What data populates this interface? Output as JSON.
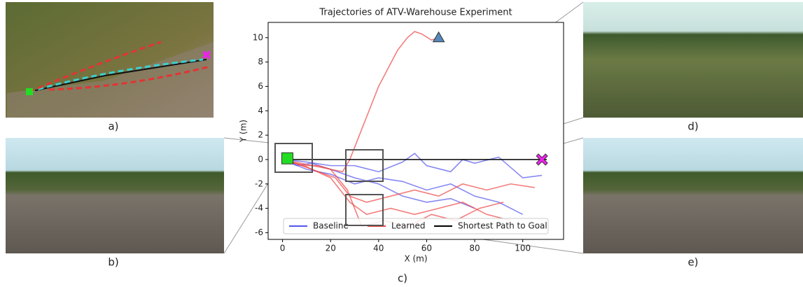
{
  "captions": [
    "a)",
    "b)",
    "c)",
    "d)",
    "e)"
  ],
  "chart_data": {
    "type": "line",
    "title": "Trajectories of ATV-Warehouse Experiment",
    "xlabel": "X (m)",
    "ylabel": "Y (m)",
    "xlim": [
      -6,
      117
    ],
    "ylim": [
      -6.55,
      11.25
    ],
    "xticks": [
      0,
      20,
      40,
      60,
      80,
      100
    ],
    "yticks": [
      -6,
      -4,
      -2,
      0,
      2,
      4,
      6,
      8,
      10
    ],
    "legend": "lower center",
    "series": [
      {
        "name": "Baseline",
        "color": "#5555ee",
        "lines": [
          {
            "x": [
              0,
              10,
              20,
              30,
              40,
              50,
              55,
              60,
              70,
              75,
              80,
              90,
              100,
              108
            ],
            "y": [
              0,
              -0.2,
              -0.5,
              -0.5,
              -1,
              -0.2,
              0.5,
              -0.5,
              -1,
              0,
              -0.3,
              0.2,
              -1.5,
              -1.3
            ]
          },
          {
            "x": [
              0,
              10,
              20,
              30,
              40,
              50,
              60,
              70,
              80,
              90,
              100
            ],
            "y": [
              0,
              -0.8,
              -1.2,
              -2,
              -1.5,
              -1.8,
              -2.5,
              -2,
              -3,
              -3.5,
              -4.5
            ]
          },
          {
            "x": [
              0,
              6,
              12,
              20,
              30,
              40,
              50,
              60,
              70,
              80
            ],
            "y": [
              0,
              -0.5,
              -0.3,
              -0.8,
              -1.5,
              -2,
              -3,
              -3.5,
              -3.2,
              -4
            ]
          }
        ]
      },
      {
        "name": "Learned",
        "color": "#ee4444",
        "lines": [
          {
            "x": [
              0,
              5,
              10,
              15,
              20,
              25,
              28,
              32,
              36,
              40,
              44,
              48,
              52,
              55,
              58,
              62,
              65
            ],
            "y": [
              0,
              -0.3,
              -0.5,
              -0.5,
              -0.8,
              -1,
              0,
              2,
              4,
              6,
              7.5,
              9,
              10,
              10.5,
              10.3,
              9.8,
              10
            ]
          },
          {
            "x": [
              0,
              8,
              15,
              22,
              28,
              35,
              45,
              55,
              65,
              75,
              85,
              95,
              105
            ],
            "y": [
              0,
              -0.5,
              -1,
              -1.5,
              -3,
              -3.5,
              -3,
              -2.5,
              -3,
              -2,
              -2.5,
              -2,
              -2.3
            ]
          },
          {
            "x": [
              0,
              10,
              20,
              28,
              35,
              45,
              55,
              65,
              75,
              85,
              95
            ],
            "y": [
              0,
              -0.6,
              -1.5,
              -3.5,
              -4.5,
              -4,
              -4.5,
              -4,
              -3.5,
              -4.5,
              -5
            ]
          },
          {
            "x": [
              0,
              10,
              20,
              27,
              33,
              42,
              52,
              62,
              72,
              82,
              92
            ],
            "y": [
              0,
              -0.4,
              -0.8,
              -2.5,
              -5.5,
              -5,
              -5.5,
              -4.5,
              -5,
              -4,
              -3.5
            ]
          }
        ]
      },
      {
        "name": "Shortest Path to Goal",
        "color": "#000000",
        "lines": [
          {
            "x": [
              0,
              110
            ],
            "y": [
              0,
              0
            ]
          }
        ]
      }
    ],
    "points": [
      {
        "x": 2,
        "y": 0.1,
        "marker": "square",
        "color": "#22dd22"
      },
      {
        "x": 108,
        "y": 0,
        "marker": "cross",
        "color": "#ee22ee"
      },
      {
        "x": 65,
        "y": 10,
        "marker": "triangle",
        "color": "#5588bb"
      }
    ]
  }
}
